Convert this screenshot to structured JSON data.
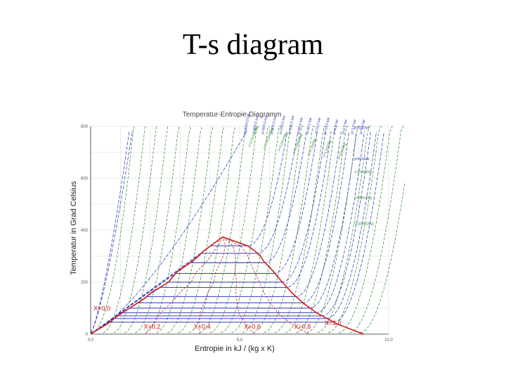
{
  "slide": {
    "title": "T-s diagram"
  },
  "chart_data": {
    "type": "line",
    "title": "Temperatur-Entropie-Diagramm",
    "xlabel": "Entropie in kJ / (kg x K)",
    "ylabel": "Temperatur in Grad Celsius",
    "xlim": [
      0,
      10
    ],
    "ylim": [
      0,
      800
    ],
    "x_ticks": [
      "0,0",
      "5,0",
      "10,0"
    ],
    "y_ticks": [
      "0",
      "200",
      "400",
      "600",
      "800"
    ],
    "grid": true,
    "colors": {
      "isobar": "#2b2fb5",
      "isochore": "#2a8a2a",
      "dome": "#d11a1a",
      "quality": "#b83030",
      "grid": "#d8d8d8"
    },
    "saturation_dome": {
      "liquid_line": {
        "label": "X=0,0",
        "s": [
          0.0,
          0.57,
          1.02,
          1.31,
          1.58,
          1.84,
          2.04,
          2.33,
          2.61,
          2.9,
          3.16,
          3.41,
          3.62,
          3.79,
          4.03,
          4.43
        ],
        "T": [
          0,
          40,
          80,
          100,
          120,
          140,
          160,
          180,
          200,
          240,
          260,
          280,
          300,
          320,
          340,
          374
        ]
      },
      "vapor_line": {
        "label": "X=1,0",
        "s": [
          9.15,
          8.25,
          7.61,
          7.36,
          7.13,
          6.93,
          6.75,
          6.59,
          6.43,
          6.14,
          5.98,
          5.81,
          5.7,
          5.51,
          5.27,
          4.43
        ],
        "T": [
          0,
          40,
          80,
          100,
          120,
          140,
          160,
          180,
          200,
          240,
          260,
          280,
          300,
          320,
          340,
          374
        ]
      },
      "quality_lines": [
        {
          "label": "X=0,2",
          "x": 0.2
        },
        {
          "label": "X=0,4",
          "x": 0.4
        },
        {
          "label": "X=0,6",
          "x": 0.6
        },
        {
          "label": "X=0,8",
          "x": 0.8
        }
      ]
    },
    "isobar_labels": [
      "p=1000,0 bar",
      "p=800,0 bar",
      "p=500,0 bar",
      "p=300,0 bar",
      "p=200,0 bar",
      "p=100,0 bar",
      "p=60,0 bar",
      "p=30,0 bar",
      "p=15,0 bar",
      "p=10,0 bar",
      "p=4,0 bar",
      "p=2,0 bar",
      "p=1,0 bar",
      "p=0,5 bar",
      "p=0,4 bar",
      "p=0,2 bar"
    ],
    "isochore_labels": [
      "v=0,001m3/kg",
      "v=0,002m3/kg",
      "v=0,01m3/kg",
      "v=0,05m3/kg",
      "v=0,1m3/kg",
      "v=1,0m3/kg",
      "v=10m3/kg",
      "v=25m3/kg",
      "v=50m3/kg",
      "v=100m3/kg"
    ],
    "isobar_sat_temps": [
      374,
      340,
      311,
      275,
      234,
      200,
      180,
      144,
      120,
      100,
      82,
      70,
      60,
      46
    ],
    "isobar_entry_s": [
      4.35,
      4.0,
      3.6,
      3.2,
      2.9,
      2.6,
      2.4,
      2.0,
      1.6,
      1.3,
      1.05,
      0.9,
      0.8,
      0.6,
      0.5,
      0.4
    ]
  }
}
